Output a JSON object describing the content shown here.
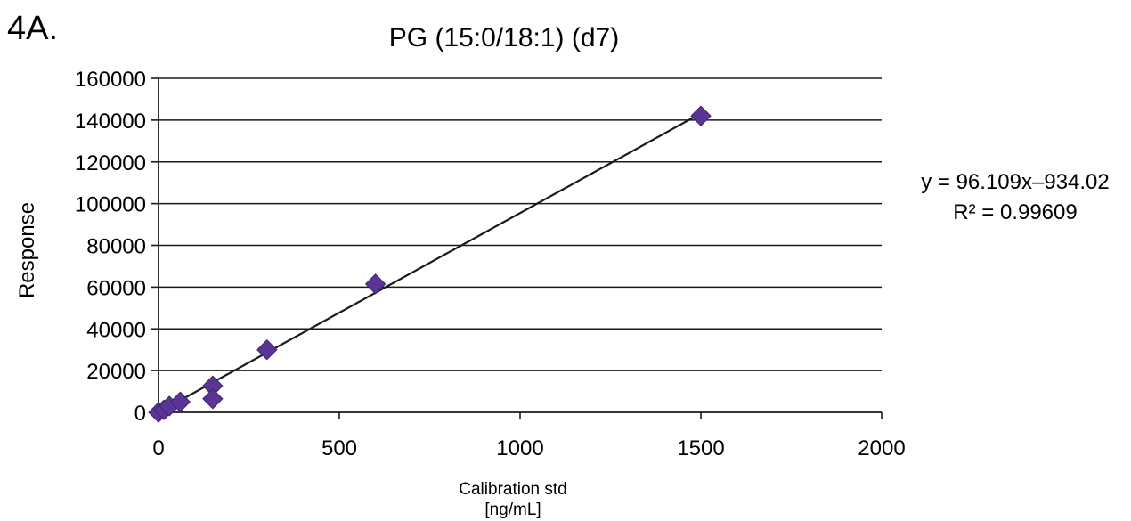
{
  "panel_label": "4A.",
  "chart_data": {
    "type": "scatter",
    "title": "PG (15:0/18:1) (d7)",
    "xlabel": [
      "Calibration std",
      "[ng/mL]"
    ],
    "ylabel": "Response",
    "xlim": [
      0,
      2000
    ],
    "ylim": [
      0,
      160000
    ],
    "xticks": [
      0,
      500,
      1000,
      1500,
      2000
    ],
    "yticks": [
      0,
      20000,
      40000,
      60000,
      80000,
      100000,
      120000,
      140000,
      160000
    ],
    "grid": "horizontal",
    "marker_color": "#5b3596",
    "trendline_color": "#1a1a1a",
    "series": [
      {
        "x": [
          0,
          15,
          30,
          60,
          150,
          150,
          300,
          600,
          1500
        ],
        "y": [
          0,
          1200,
          3000,
          5000,
          12700,
          6500,
          30000,
          61500,
          142000
        ]
      }
    ],
    "trendline": {
      "slope": 96.109,
      "intercept": -934.02,
      "equation": "y = 96.109x–934.02",
      "r_squared": "R² = 0.99609"
    }
  }
}
